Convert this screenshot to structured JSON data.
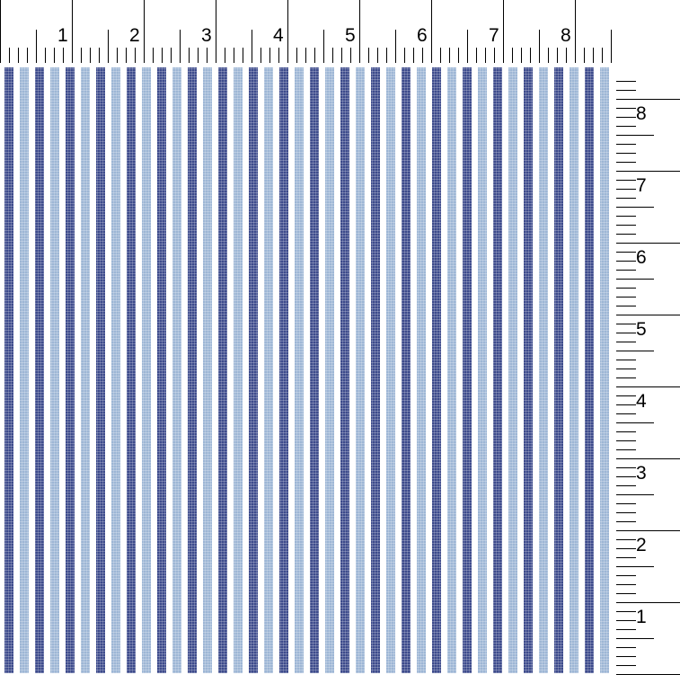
{
  "swatch": {
    "dark_stripe_color": "#3d4b8c",
    "light_stripe_color": "#9db6d5",
    "pattern": "vertical stripes"
  },
  "top_ruler": {
    "labels": [
      "1",
      "2",
      "3",
      "4",
      "5",
      "6",
      "7",
      "8"
    ]
  },
  "right_ruler": {
    "labels": [
      "1",
      "2",
      "3",
      "4",
      "5",
      "6",
      "7",
      "8"
    ]
  }
}
